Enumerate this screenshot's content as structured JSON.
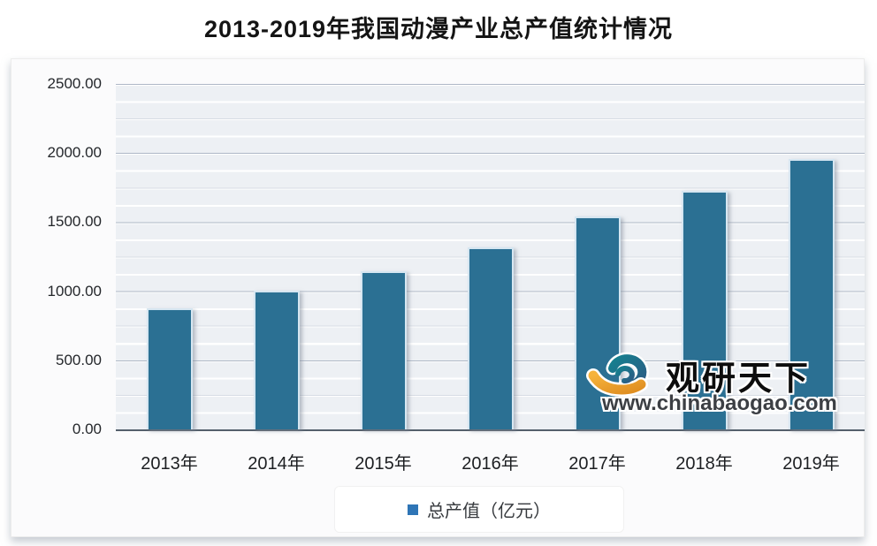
{
  "title": "2013-2019年我国动漫产业总产值统计情况",
  "legend": {
    "label": "总产值（亿元）",
    "marker_color": "#2e75b6"
  },
  "watermark": {
    "brand": "观研天下",
    "url": "www.chinabaogao.com"
  },
  "chart_data": {
    "type": "bar",
    "title": "2013-2019年我国动漫产业总产值统计情况",
    "categories": [
      "2013年",
      "2014年",
      "2015年",
      "2016年",
      "2017年",
      "2018年",
      "2019年"
    ],
    "series": [
      {
        "name": "总产值（亿元）",
        "values": [
          870,
          1000,
          1140,
          1310,
          1530,
          1715,
          1945
        ]
      }
    ],
    "xlabel": "",
    "ylabel": "",
    "ylim": [
      0,
      2500
    ],
    "y_tick_labels": [
      "2500.00",
      "2000.00",
      "1500.00",
      "1000.00",
      "500.00",
      "0.00"
    ],
    "y_major_step": 500,
    "y_minor_step": 125,
    "grid": "horizontal-on",
    "legend_position": "bottom",
    "bar_color": "#2b7093"
  },
  "colors": {
    "bar_fill": "#2b7093",
    "legend_marker": "#2e75b6",
    "plot_background": "#edf0f4",
    "axis_line": "#55606c",
    "logo_teal": "#1d7487",
    "logo_orange": "#f09f35"
  }
}
